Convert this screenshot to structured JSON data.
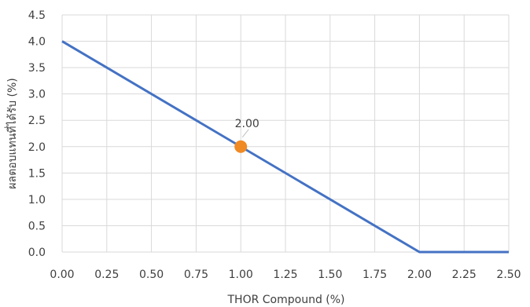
{
  "chart_data": {
    "type": "line",
    "xlabel": "THOR Compound (%)",
    "ylabel": "ผลตอบแทนที่ได้รับ (%)",
    "xlim": [
      0,
      2.5
    ],
    "ylim": [
      0,
      4.5
    ],
    "xticks": [
      "0.00",
      "0.25",
      "0.50",
      "0.75",
      "1.00",
      "1.25",
      "1.50",
      "1.75",
      "2.00",
      "2.25",
      "2.50"
    ],
    "yticks": [
      "0.0",
      "0.5",
      "1.0",
      "1.5",
      "2.0",
      "2.5",
      "3.0",
      "3.5",
      "4.0",
      "4.5"
    ],
    "grid": true,
    "series": [
      {
        "x": [
          0,
          2.0,
          2.5
        ],
        "y": [
          4.0,
          0.0,
          0.0
        ],
        "color": "#4472C4"
      }
    ],
    "highlight": {
      "x": 1.0,
      "y": 2.0,
      "label": "2.00",
      "color": "#F08A24"
    }
  }
}
